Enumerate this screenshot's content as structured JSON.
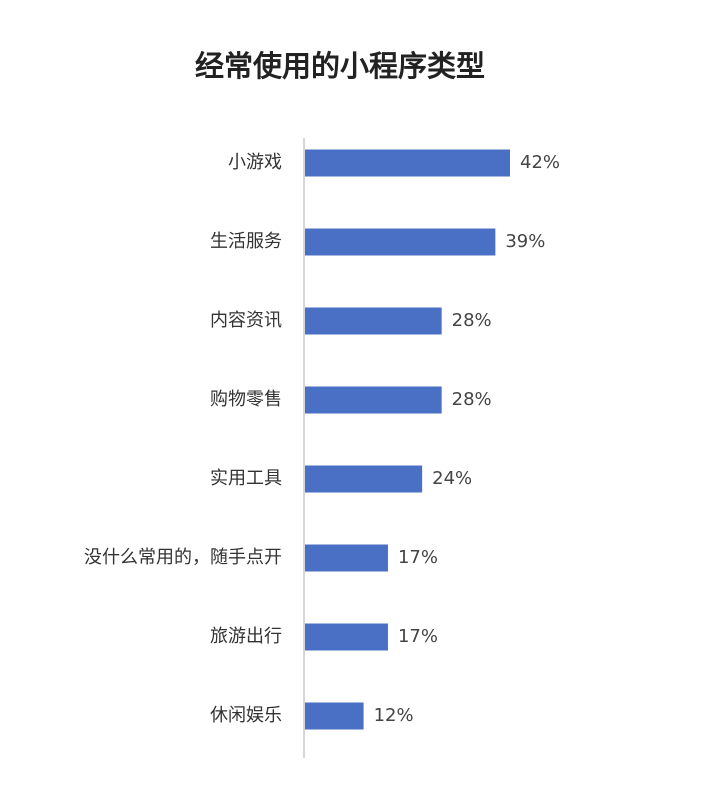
{
  "chart_data": {
    "type": "bar",
    "orientation": "horizontal",
    "title": "经常使用的小程序类型",
    "categories": [
      "小游戏",
      "生活服务",
      "内容资讯",
      "购物零售",
      "实用工具",
      "没什么常用的，随手点开",
      "旅游出行",
      "休闲娱乐"
    ],
    "values": [
      42,
      39,
      28,
      28,
      24,
      17,
      17,
      12
    ],
    "value_labels": [
      "42%",
      "39%",
      "28%",
      "28%",
      "24%",
      "17%",
      "17%",
      "12%"
    ],
    "color": "#4a70c5"
  }
}
